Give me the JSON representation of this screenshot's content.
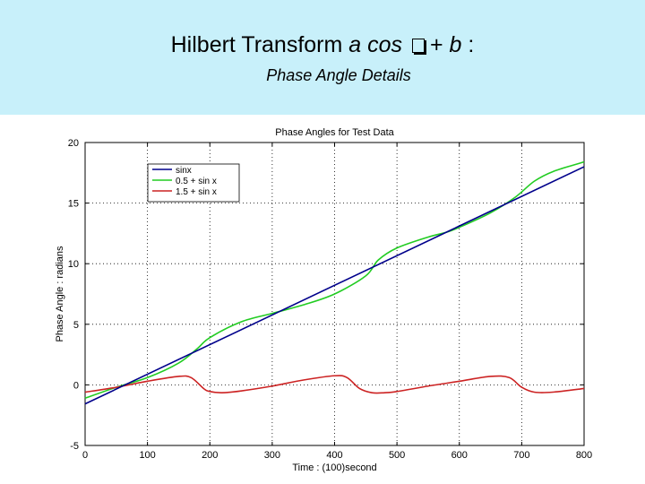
{
  "slide": {
    "title_prefix": "Hilbert Transform ",
    "title_italic": "a cos ",
    "title_mid": "+ ",
    "title_italic2": "b",
    "title_suffix": " :",
    "subtitle": "Phase Angle Details"
  },
  "colors": {
    "header_bg": "#c8f0fa",
    "sinx": "#00008b",
    "half_plus_sin": "#22cc22",
    "one_half_plus_sin": "#cc2222"
  },
  "chart_data": {
    "type": "line",
    "title": "Phase Angles for Test Data",
    "xlabel": "Time : (100)second",
    "ylabel": "Phase Angle : radians",
    "xlim": [
      0,
      800
    ],
    "ylim": [
      -5,
      20
    ],
    "xticks": [
      0,
      100,
      200,
      300,
      400,
      500,
      600,
      700,
      800
    ],
    "yticks": [
      -5,
      0,
      5,
      10,
      15,
      20
    ],
    "grid": true,
    "legend_position": "top-left",
    "series": [
      {
        "name": "sinx",
        "color": "#00008b",
        "x": [
          0,
          800
        ],
        "y": [
          -1.57,
          18.0
        ]
      },
      {
        "name": "0.5 + sin x",
        "color": "#22cc22",
        "x": [
          0,
          50,
          100,
          150,
          180,
          200,
          250,
          300,
          350,
          400,
          450,
          470,
          500,
          550,
          580,
          600,
          650,
          690,
          720,
          750,
          800
        ],
        "y": [
          -1.1,
          -0.2,
          0.6,
          1.8,
          3.0,
          3.9,
          5.2,
          5.9,
          6.6,
          7.5,
          9.0,
          10.3,
          11.3,
          12.2,
          12.6,
          13.0,
          14.2,
          15.5,
          16.8,
          17.6,
          18.4
        ]
      },
      {
        "name": "1.5 + sin x",
        "color": "#cc2222",
        "x": [
          0,
          50,
          100,
          150,
          170,
          190,
          200,
          220,
          250,
          300,
          350,
          400,
          420,
          440,
          460,
          480,
          500,
          550,
          600,
          650,
          680,
          700,
          720,
          750,
          800
        ],
        "y": [
          -0.6,
          -0.2,
          0.3,
          0.7,
          0.6,
          -0.3,
          -0.55,
          -0.65,
          -0.5,
          -0.1,
          0.4,
          0.75,
          0.6,
          -0.3,
          -0.65,
          -0.65,
          -0.55,
          -0.1,
          0.3,
          0.7,
          0.6,
          -0.2,
          -0.6,
          -0.6,
          -0.3
        ]
      }
    ]
  }
}
